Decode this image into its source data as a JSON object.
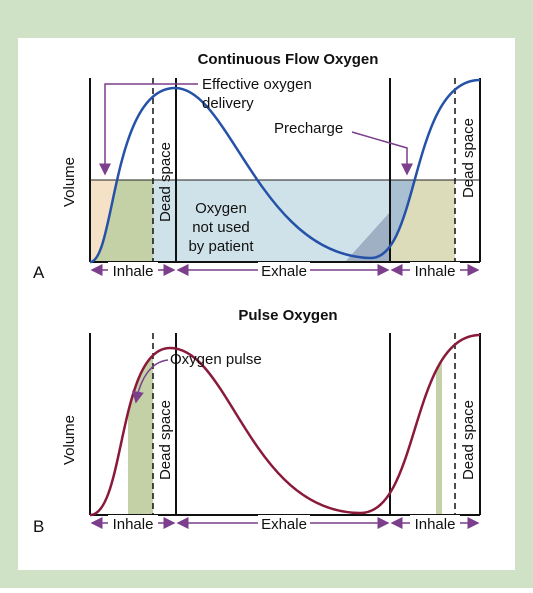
{
  "panel_a": {
    "title": "Continuous Flow Oxygen",
    "letter": "A",
    "y_label": "Volume",
    "effective_delivery": [
      "Effective oxygen",
      "delivery"
    ],
    "precharge": "Precharge",
    "dead_space_left": "Dead space",
    "dead_space_right": "Dead space",
    "not_used": [
      "Oxygen",
      "not used",
      "by patient"
    ],
    "phases": [
      "Inhale",
      "Exhale",
      "Inhale"
    ]
  },
  "panel_b": {
    "title": "Pulse Oxygen",
    "letter": "B",
    "y_label": "Volume",
    "oxygen_pulse": "Oxygen pulse",
    "dead_space_left": "Dead space",
    "dead_space_right": "Dead space",
    "phases": [
      "Inhale",
      "Exhale",
      "Inhale"
    ]
  }
}
